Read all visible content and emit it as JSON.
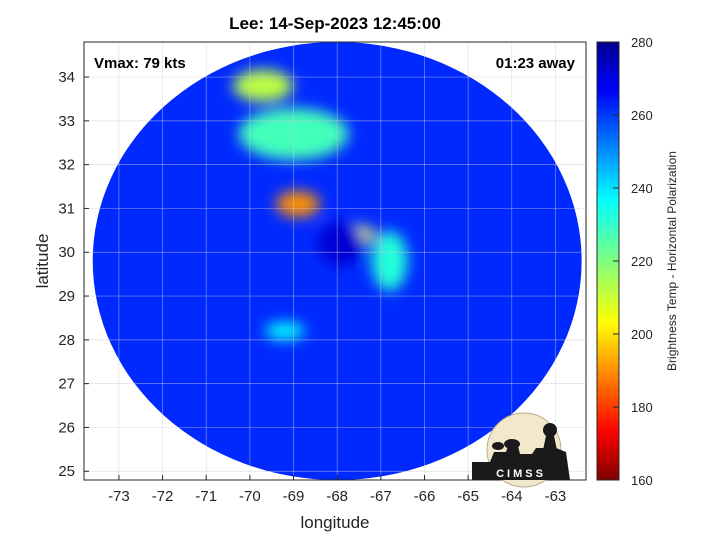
{
  "chart_data": {
    "type": "heatmap",
    "title": "Lee: 14-Sep-2023 12:45:00",
    "xlabel": "longitude",
    "ylabel": "latitude",
    "xlim": [
      -73.8,
      -62.3
    ],
    "ylim": [
      24.8,
      34.8
    ],
    "x_ticks": [
      -73,
      -72,
      -71,
      -70,
      -69,
      -68,
      -67,
      -66,
      -65,
      -64,
      -63
    ],
    "y_ticks": [
      25,
      26,
      27,
      28,
      29,
      30,
      31,
      32,
      33,
      34
    ],
    "grid": true,
    "annotations": {
      "left": "Vmax: 79 kts",
      "right": "01:23 away"
    },
    "colorbar": {
      "label": "Brightness Temp - Horizontal Polarization",
      "range": [
        160,
        280
      ],
      "ticks": [
        160,
        180,
        200,
        220,
        240,
        260,
        280
      ],
      "colormap": "jet"
    },
    "storm_center": {
      "lon": -67.9,
      "lat": 30.2
    },
    "swath": {
      "center_lon": -68.0,
      "center_lat": 29.8,
      "half_width_lon": 5.6,
      "half_height_lat": 5.0,
      "background_value": 262
    },
    "features": [
      {
        "name": "eyewall-north",
        "lon": -68.9,
        "lat": 31.1,
        "value": 190
      },
      {
        "name": "eyewall-east",
        "lon": -67.6,
        "lat": 30.4,
        "value": 205
      },
      {
        "name": "band-northwest",
        "lon": -69.7,
        "lat": 33.8,
        "value": 212
      },
      {
        "name": "band-north",
        "lon": -69.0,
        "lat": 32.7,
        "value": 228
      },
      {
        "name": "band-east",
        "lon": -66.8,
        "lat": 29.8,
        "value": 232
      },
      {
        "name": "band-south",
        "lon": -69.2,
        "lat": 28.2,
        "value": 236
      },
      {
        "name": "eye",
        "lon": -67.9,
        "lat": 30.2,
        "value": 272
      }
    ]
  },
  "logo": {
    "text": "CIMSS"
  }
}
